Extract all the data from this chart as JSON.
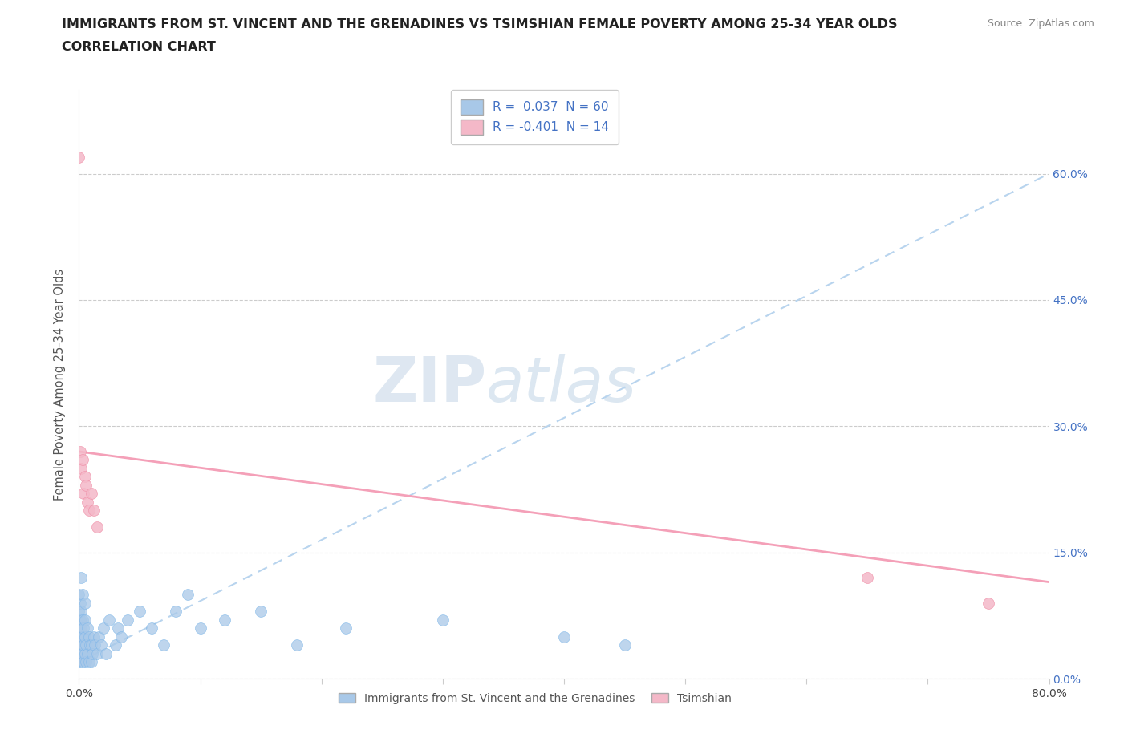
{
  "title_line1": "IMMIGRANTS FROM ST. VINCENT AND THE GRENADINES VS TSIMSHIAN FEMALE POVERTY AMONG 25-34 YEAR OLDS",
  "title_line2": "CORRELATION CHART",
  "source_text": "Source: ZipAtlas.com",
  "ylabel": "Female Poverty Among 25-34 Year Olds",
  "xlim": [
    0.0,
    0.8
  ],
  "ylim": [
    0.0,
    0.7
  ],
  "yticks": [
    0.0,
    0.15,
    0.3,
    0.45,
    0.6
  ],
  "ytick_labels": [
    "0.0%",
    "15.0%",
    "30.0%",
    "45.0%",
    "60.0%"
  ],
  "xticks": [
    0.0,
    0.1,
    0.2,
    0.3,
    0.4,
    0.5,
    0.6,
    0.7,
    0.8
  ],
  "xtick_labels": [
    "0.0%",
    "",
    "",
    "",
    "",
    "",
    "",
    "",
    "80.0%"
  ],
  "blue_R": 0.037,
  "blue_N": 60,
  "pink_R": -0.401,
  "pink_N": 14,
  "blue_color": "#A8C8E8",
  "blue_edge_color": "#7EB6E8",
  "pink_color": "#F4B8C8",
  "pink_edge_color": "#F090A8",
  "trend_blue_color": "#B8D4EE",
  "trend_pink_color": "#F4A0B8",
  "legend_label_blue": "Immigrants from St. Vincent and the Grenadines",
  "legend_label_pink": "Tsimshian",
  "watermark_zip": "ZIP",
  "watermark_atlas": "atlas",
  "right_tick_color": "#4472C4",
  "blue_scatter_x": [
    0.0,
    0.0,
    0.0,
    0.0,
    0.0,
    0.001,
    0.001,
    0.001,
    0.001,
    0.002,
    0.002,
    0.002,
    0.002,
    0.002,
    0.003,
    0.003,
    0.003,
    0.003,
    0.004,
    0.004,
    0.004,
    0.005,
    0.005,
    0.005,
    0.005,
    0.006,
    0.006,
    0.007,
    0.007,
    0.008,
    0.008,
    0.009,
    0.01,
    0.01,
    0.011,
    0.012,
    0.013,
    0.015,
    0.016,
    0.018,
    0.02,
    0.022,
    0.025,
    0.03,
    0.032,
    0.035,
    0.04,
    0.05,
    0.06,
    0.07,
    0.08,
    0.09,
    0.1,
    0.12,
    0.15,
    0.18,
    0.22,
    0.3,
    0.4,
    0.45
  ],
  "blue_scatter_y": [
    0.02,
    0.04,
    0.06,
    0.08,
    0.1,
    0.03,
    0.05,
    0.07,
    0.09,
    0.02,
    0.04,
    0.06,
    0.08,
    0.12,
    0.03,
    0.05,
    0.07,
    0.1,
    0.02,
    0.04,
    0.06,
    0.03,
    0.05,
    0.07,
    0.09,
    0.02,
    0.04,
    0.03,
    0.06,
    0.02,
    0.05,
    0.04,
    0.02,
    0.04,
    0.03,
    0.05,
    0.04,
    0.03,
    0.05,
    0.04,
    0.06,
    0.03,
    0.07,
    0.04,
    0.06,
    0.05,
    0.07,
    0.08,
    0.06,
    0.04,
    0.08,
    0.1,
    0.06,
    0.07,
    0.08,
    0.04,
    0.06,
    0.07,
    0.05,
    0.04
  ],
  "pink_scatter_x": [
    0.0,
    0.001,
    0.002,
    0.003,
    0.004,
    0.005,
    0.006,
    0.007,
    0.008,
    0.01,
    0.012,
    0.015,
    0.65,
    0.75
  ],
  "pink_scatter_y": [
    0.62,
    0.27,
    0.25,
    0.26,
    0.22,
    0.24,
    0.23,
    0.21,
    0.2,
    0.22,
    0.2,
    0.18,
    0.12,
    0.09
  ],
  "blue_trend_x0": 0.0,
  "blue_trend_x1": 0.8,
  "blue_trend_y0": 0.02,
  "blue_trend_y1": 0.6,
  "pink_trend_x0": 0.0,
  "pink_trend_x1": 0.8,
  "pink_trend_y0": 0.27,
  "pink_trend_y1": 0.115
}
